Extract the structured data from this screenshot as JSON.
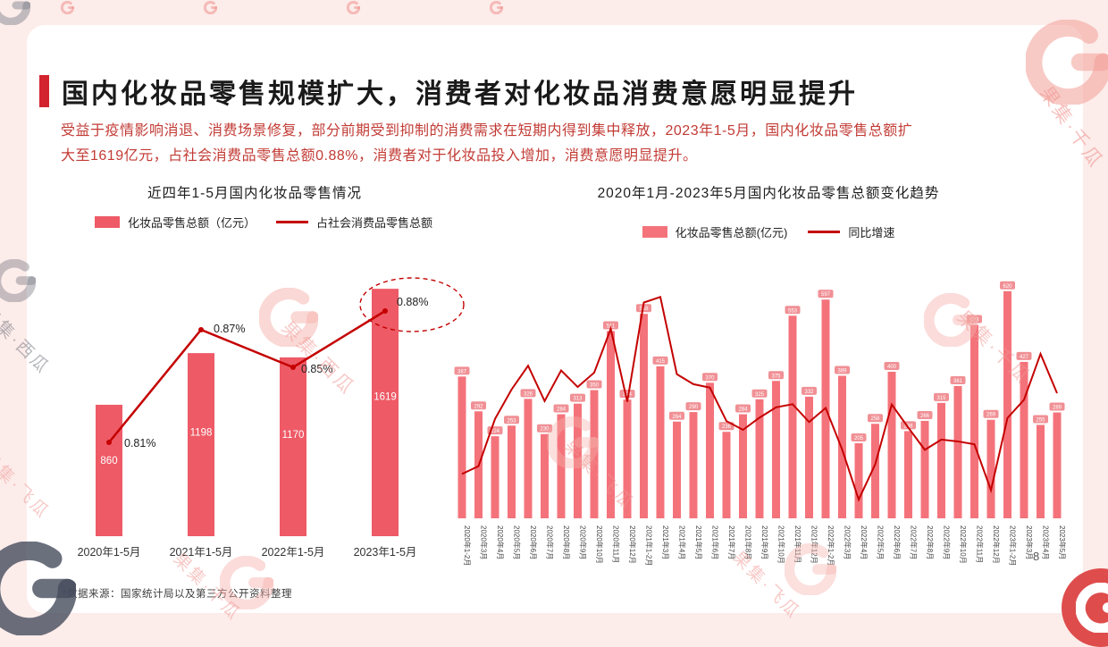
{
  "page": {
    "title": "国内化妆品零售规模扩大，消费者对化妆品消费意愿明显提升",
    "subtitle_line1": "受益于疫情影响消退、消费场景修复，部分前期受到抑制的消费需求在短期内得到集中释放，2023年1-5月，国内化妆品零售总额扩",
    "subtitle_line2": "大至1619亿元，占社会消费品零售总额0.88%，消费者对于化妆品投入增加，消费意愿明显提升。",
    "footnote": "*数据来源：国家统计局以及第三方公开资料整理",
    "page_number": "8"
  },
  "colors": {
    "background": "#fcecea",
    "card": "#ffffff",
    "accent_red": "#d2232e",
    "subtitle_red": "#c23b35",
    "bar_pink": "#ee5a66",
    "bar_pink_light": "#f4737b",
    "line_red": "#c40000",
    "tag_pink": "#f09095"
  },
  "watermarks": [
    {
      "text": "果集·千瓜"
    },
    {
      "text": "果集·西瓜"
    },
    {
      "text": "果集·西瓜"
    },
    {
      "text": "果集·千瓜"
    },
    {
      "text": "果集·飞瓜"
    },
    {
      "text": "果集·千瓜"
    },
    {
      "text": "果集·飞瓜"
    },
    {
      "text": "果集·飞瓜"
    }
  ],
  "chart_data": [
    {
      "type": "bar+line",
      "title": "近四年1-5月国内化妆品零售情况",
      "legend": [
        "化妆品零售总额（亿元）",
        "占社会消费品零售总额"
      ],
      "categories": [
        "2020年1-5月",
        "2021年1-5月",
        "2022年1-5月",
        "2023年1-5月"
      ],
      "bar_values": [
        860,
        1198,
        1170,
        1619
      ],
      "bar_unit": "亿元",
      "line_values_pct": [
        0.81,
        0.87,
        0.85,
        0.88
      ],
      "line_labels": [
        "0.81%",
        "0.87%",
        "0.85%",
        "0.88%"
      ],
      "annotation": "0.88%数据点以红色虚线椭圆圈注",
      "ylim": [
        0,
        1800
      ],
      "grid": false,
      "legend_position": "top"
    },
    {
      "type": "bar+line",
      "title": "2020年1月-2023年5月国内化妆品零售总额变化趋势",
      "legend": [
        "化妆品零售总额(亿元)",
        "同比增速"
      ],
      "categories": [
        "2020年1-2月",
        "2020年3月",
        "2020年4月",
        "2020年5月",
        "2020年6月",
        "2020年7月",
        "2020年8月",
        "2020年9月",
        "2020年10月",
        "2020年11月",
        "2020年12月",
        "2021年1-2月",
        "2021年3月",
        "2021年4月",
        "2021年5月",
        "2021年6月",
        "2021年7月",
        "2021年8月",
        "2021年9月",
        "2021年10月",
        "2021年11月",
        "2021年12月",
        "2022年1-2月",
        "2022年3月",
        "2022年4月",
        "2022年5月",
        "2022年6月",
        "2022年7月",
        "2022年8月",
        "2022年9月",
        "2022年10月",
        "2022年11月",
        "2022年12月",
        "2023年1-2月",
        "2023年3月",
        "2023年4月",
        "2023年5月"
      ],
      "bar_values": [
        387,
        292,
        224,
        253,
        326,
        230,
        284,
        313,
        350,
        511,
        324,
        558,
        415,
        264,
        290,
        370,
        236,
        284,
        325,
        375,
        553,
        332,
        597,
        389,
        205,
        258,
        400,
        238,
        266,
        315,
        361,
        528,
        269,
        620,
        427,
        255,
        289
      ],
      "bar_unit": "亿元",
      "line_values_pct": [
        -14.1,
        -11.6,
        3.5,
        12.9,
        20.5,
        9.2,
        19.0,
        13.7,
        18.3,
        32.3,
        9.0,
        40.7,
        42.5,
        17.8,
        14.6,
        13.5,
        2.8,
        0.0,
        3.9,
        7.2,
        8.2,
        2.5,
        7.0,
        -6.3,
        -22.3,
        -11.0,
        8.1,
        0.7,
        -6.4,
        -3.1,
        -3.7,
        -4.6,
        -19.3,
        3.8,
        9.6,
        24.3,
        11.7
      ],
      "estimated": true,
      "ylim_bars": [
        0,
        700
      ],
      "ylim_line_pct": [
        -30,
        50
      ],
      "grid": false,
      "legend_position": "top"
    }
  ]
}
